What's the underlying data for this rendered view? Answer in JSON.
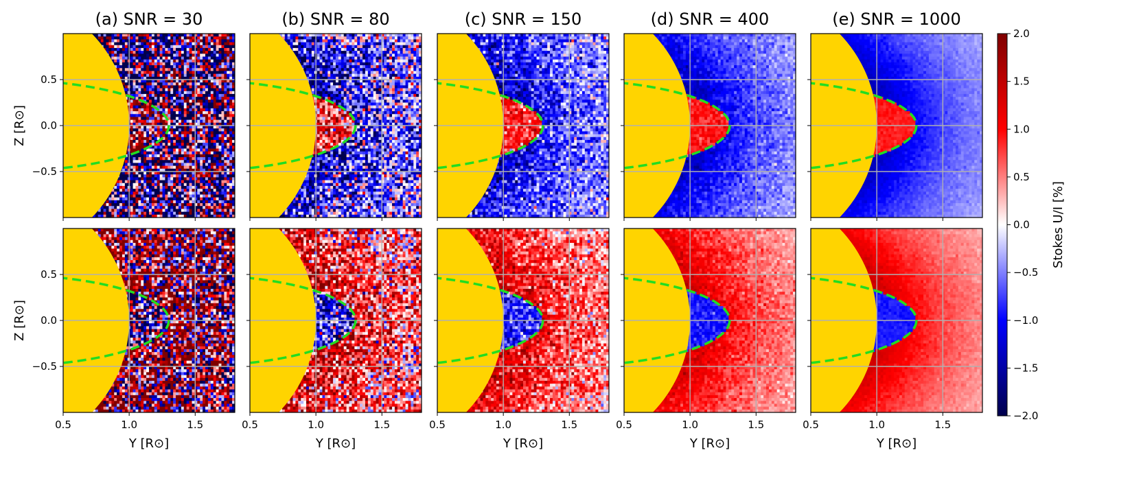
{
  "chart_data": {
    "type": "heatmap",
    "panels": [
      {
        "title": "(a) SNR = 30",
        "snr": 30
      },
      {
        "title": "(b) SNR = 80",
        "snr": 80
      },
      {
        "title": "(c) SNR = 150",
        "snr": 150
      },
      {
        "title": "(d) SNR = 400",
        "snr": 400
      },
      {
        "title": "(e) SNR = 1000",
        "snr": 1000
      }
    ],
    "rows": 2,
    "xlabel": "Y [R⊙]",
    "ylabel": "Z [R⊙]",
    "xlim": [
      0.5,
      1.8
    ],
    "ylim": [
      -1.0,
      1.0
    ],
    "xticks": [
      0.5,
      1.0,
      1.5
    ],
    "xtick_labels": [
      "0.5",
      "1.0",
      "1.5"
    ],
    "yticks": [
      0.5,
      0.0,
      -0.5
    ],
    "ytick_labels": [
      "0.5",
      "0.0",
      "−0.5"
    ],
    "grid": true,
    "grid_color": "#b0b0b0",
    "disk_color": "#ffd400",
    "solar_disk_radius": 1.0,
    "dashed_contour": {
      "shape": "ellipse",
      "center_y": 0.0,
      "center_z": 0.0,
      "semi_axis_y": 1.3,
      "semi_axis_z": 0.5,
      "color": "#22dd22"
    },
    "colorbar": {
      "label": "Stokes U/I [%]",
      "min": -2.0,
      "max": 2.0,
      "ticks": [
        2.0,
        1.5,
        1.0,
        0.5,
        0.0,
        -0.5,
        -1.0,
        -1.5,
        -2.0
      ],
      "tick_labels": [
        "2.0",
        "1.5",
        "1.0",
        "0.5",
        "0.0",
        "−0.5",
        "−1.0",
        "−1.5",
        "−2.0"
      ],
      "colormap": "seismic",
      "colors": [
        "#00004c",
        "#0000ff",
        "#ffffff",
        "#ff0000",
        "#7f0000"
      ]
    }
  }
}
